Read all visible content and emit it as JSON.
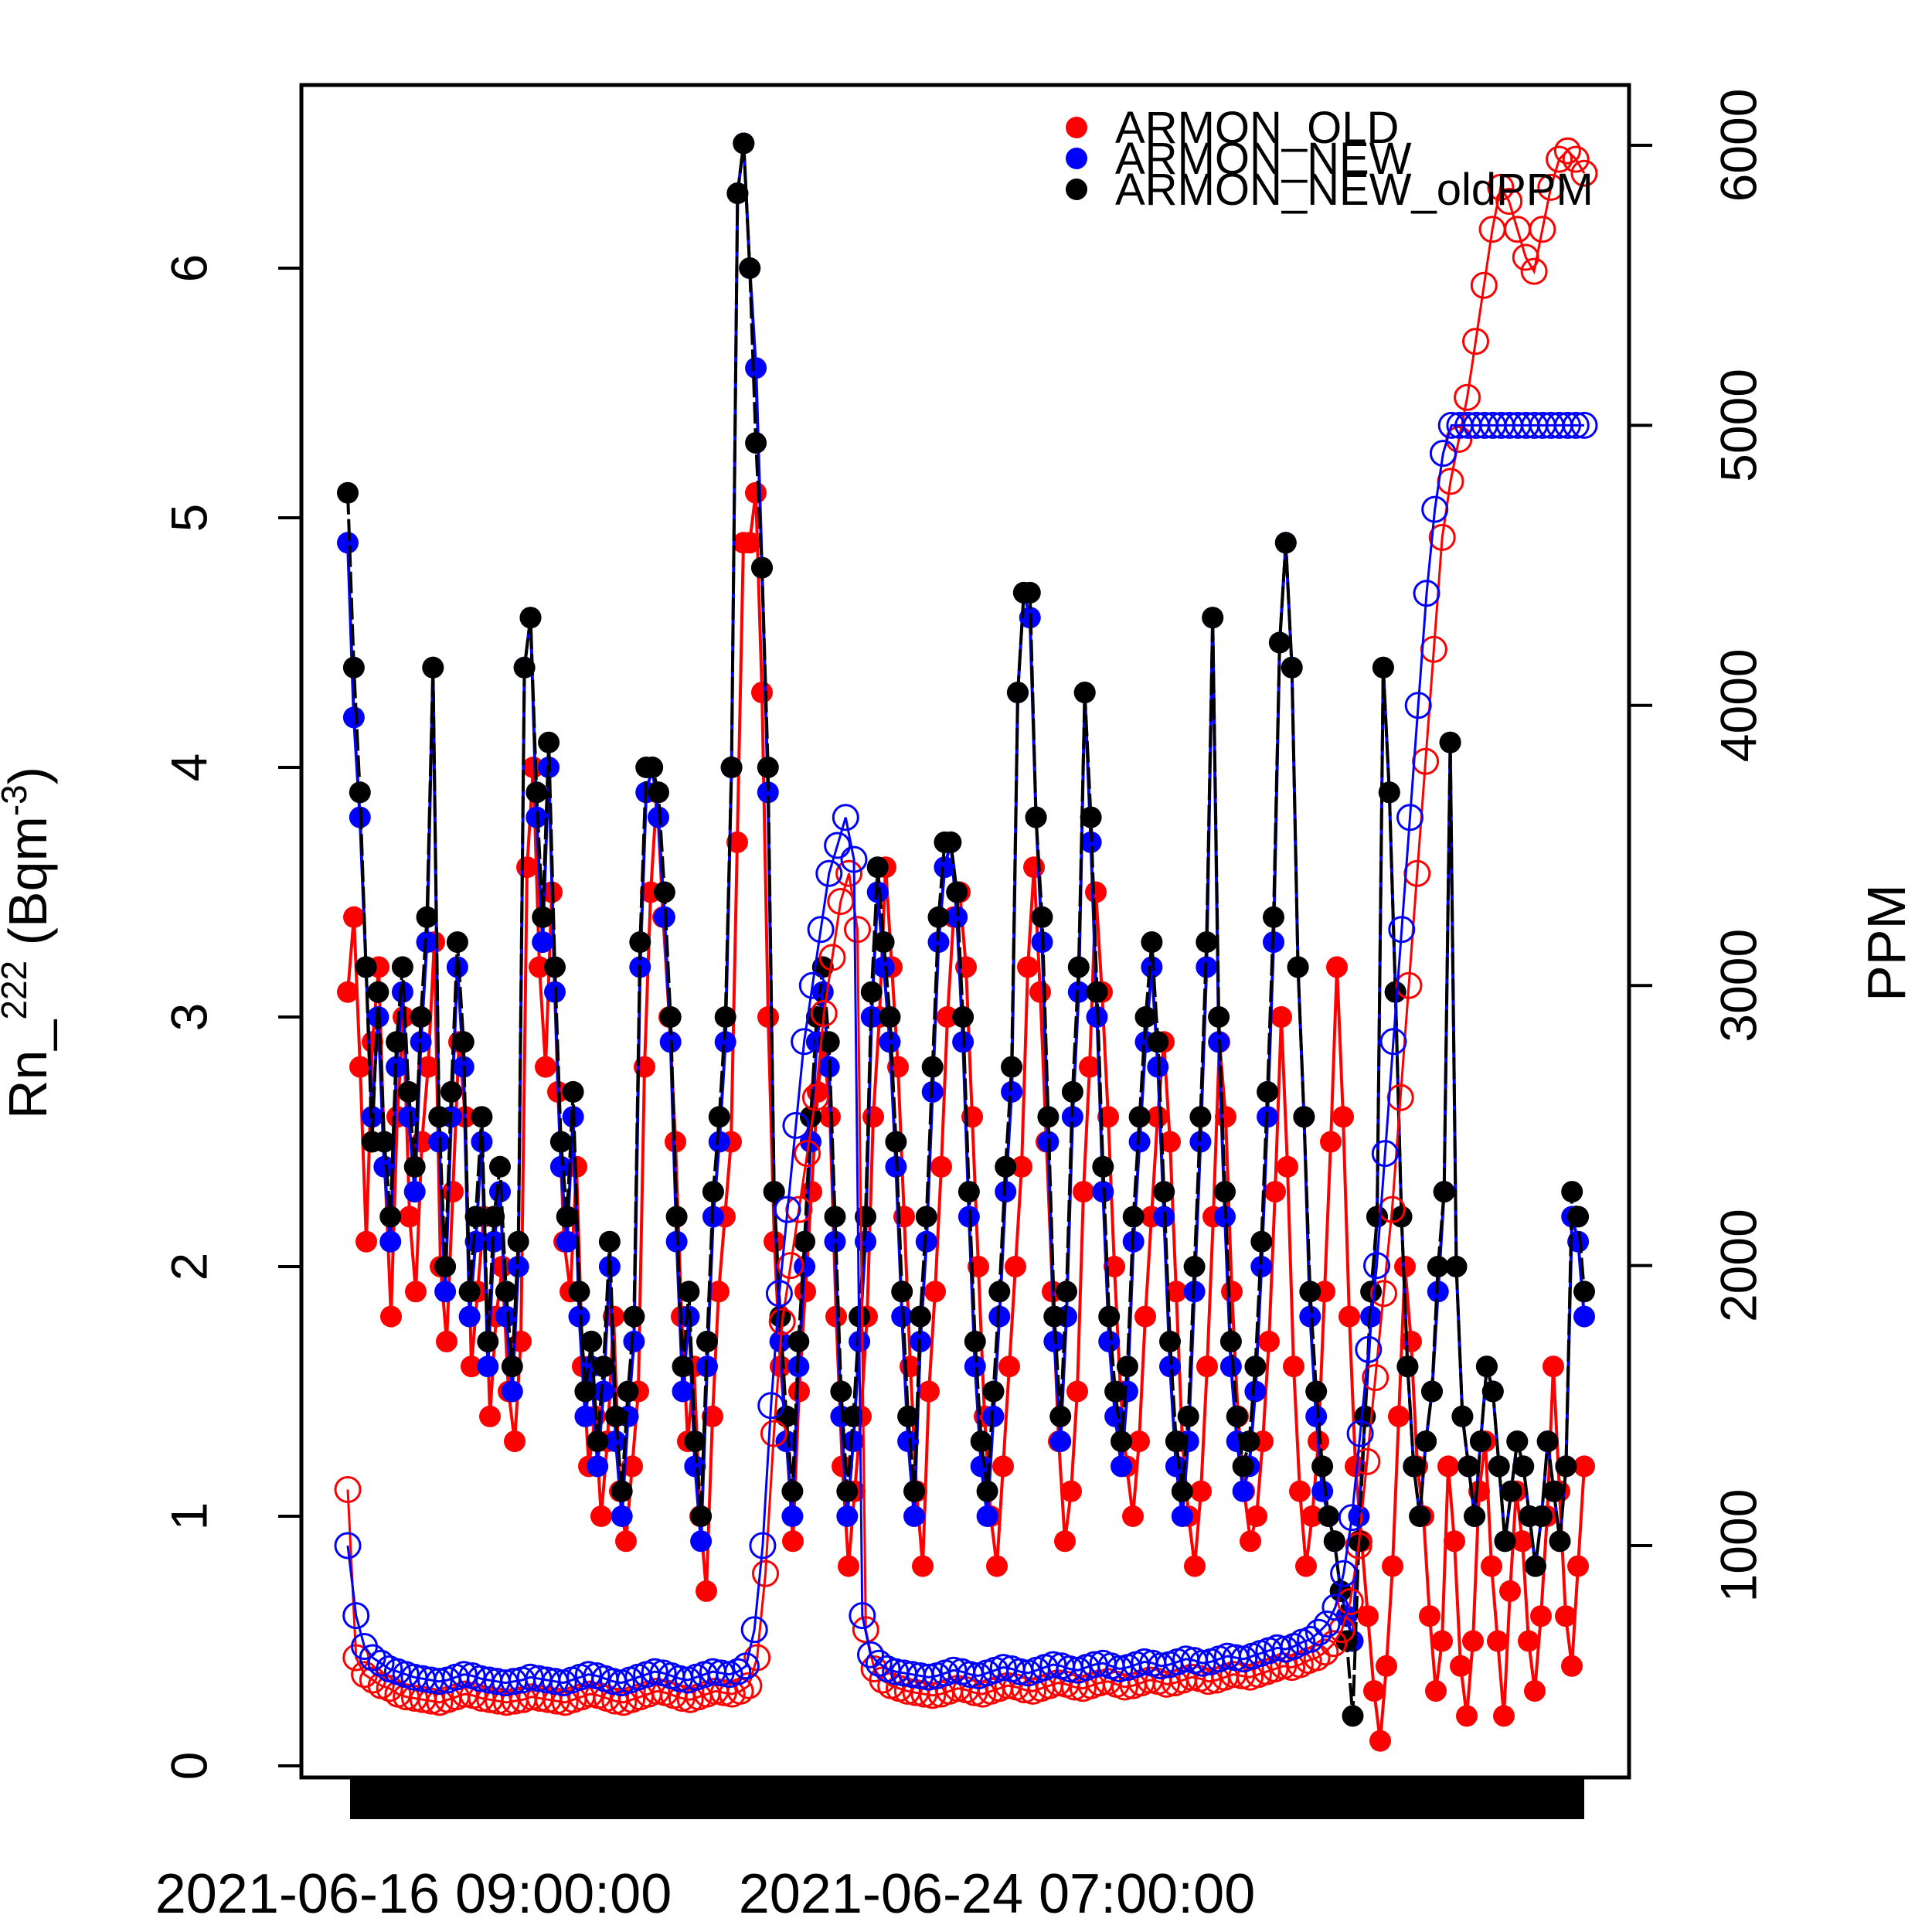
{
  "chart_data": {
    "type": "line",
    "y_left": {
      "label_prefix": "Rn_",
      "label_superscript_1": "222",
      "label_mid": " (Bqm",
      "label_superscript_2": "-3",
      "label_suffix": ")",
      "ticks": [
        "0",
        "1",
        "2",
        "3",
        "4",
        "5",
        "6"
      ],
      "ylim": [
        0,
        6.8
      ]
    },
    "y_right": {
      "label": "PPM",
      "ticks": [
        "1000",
        "2000",
        "3000",
        "4000",
        "5000",
        "6000"
      ],
      "ylim": [
        380,
        6420
      ]
    },
    "x": {
      "tick_labels": [
        "2021-06-16 09:00:00",
        "2021-06-24 07:00:00"
      ],
      "range_hours": [
        0,
        742
      ]
    },
    "legend": {
      "position": "top-right",
      "items": [
        {
          "label": "ARMON_OLD",
          "color": "#ff0000"
        },
        {
          "label": "ARMON_NEW",
          "color": "#0000ff"
        },
        {
          "label": "ARMON_NEW_oldPPM",
          "color": "#000000"
        }
      ]
    },
    "colors": {
      "old": "#ff0000",
      "new": "#0000ff",
      "new_oldppm": "#000000"
    },
    "series": [
      {
        "name": "ARMON_OLD",
        "axis": "left",
        "values": [
          3.1,
          3.4,
          2.8,
          2.1,
          2.9,
          3.2,
          2.4,
          1.8,
          2.6,
          3.0,
          2.2,
          1.9,
          2.5,
          2.8,
          3.3,
          2.0,
          1.7,
          2.3,
          2.9,
          2.6,
          1.6,
          1.9,
          2.2,
          1.4,
          1.8,
          2.0,
          1.5,
          1.3,
          1.7,
          3.6,
          4.0,
          3.2,
          2.8,
          3.5,
          2.7,
          2.1,
          1.9,
          2.4,
          1.6,
          1.2,
          1.4,
          1.0,
          1.3,
          1.8,
          1.1,
          0.9,
          1.2,
          1.5,
          2.8,
          3.5,
          3.9,
          3.4,
          3.0,
          2.5,
          1.8,
          1.3,
          1.6,
          1.0,
          0.7,
          1.4,
          1.9,
          2.2,
          2.5,
          3.7,
          4.9,
          4.9,
          5.1,
          4.3,
          3.0,
          2.1,
          1.6,
          1.3,
          0.9,
          1.5,
          1.9,
          2.3,
          2.7,
          2.9,
          2.6,
          1.8,
          1.2,
          0.8,
          1.1,
          1.4,
          1.8,
          2.6,
          3.0,
          3.6,
          3.2,
          2.8,
          2.2,
          1.6,
          1.1,
          0.8,
          1.5,
          1.9,
          2.4,
          3.0,
          3.4,
          3.5,
          3.2,
          2.6,
          2.0,
          1.4,
          1.0,
          0.8,
          1.2,
          1.6,
          2.0,
          2.4,
          3.2,
          3.6,
          3.1,
          2.5,
          1.9,
          1.3,
          0.9,
          1.1,
          1.5,
          2.3,
          2.8,
          3.5,
          3.1,
          2.6,
          2.0,
          1.5,
          1.2,
          1.0,
          1.3,
          1.8,
          2.2,
          2.6,
          2.9,
          2.5,
          1.9,
          1.3,
          1.0,
          0.8,
          1.1,
          1.6,
          2.2,
          2.9,
          2.6,
          1.9,
          1.4,
          1.1,
          0.9,
          1.0,
          1.3,
          1.7,
          2.3,
          3.0,
          2.4,
          1.6,
          1.1,
          0.8,
          1.0,
          1.3,
          1.9,
          2.5,
          3.2,
          2.6,
          1.8,
          1.2,
          0.9,
          0.6,
          0.3,
          0.1,
          0.4,
          0.8,
          1.4,
          2.0,
          1.7,
          1.2,
          1.0,
          0.6,
          0.3,
          0.5,
          1.2,
          0.9,
          0.4,
          0.2,
          0.5,
          1.1,
          1.3,
          0.8,
          0.5,
          0.2,
          0.7,
          1.1,
          0.9,
          0.5,
          0.3,
          0.6,
          1.0,
          1.6,
          1.1,
          0.6,
          0.4,
          0.8,
          1.2
        ]
      },
      {
        "name": "ARMON_NEW",
        "axis": "left",
        "values": [
          4.9,
          4.2,
          3.8,
          3.2,
          2.6,
          3.0,
          2.4,
          2.1,
          2.8,
          3.1,
          2.6,
          2.3,
          2.9,
          3.3,
          4.4,
          2.5,
          1.9,
          2.6,
          3.2,
          2.8,
          1.8,
          2.1,
          2.5,
          1.6,
          2.1,
          2.3,
          1.8,
          1.5,
          2.0,
          4.4,
          4.6,
          3.8,
          3.3,
          4.0,
          3.1,
          2.4,
          2.1,
          2.6,
          1.8,
          1.4,
          1.6,
          1.2,
          1.5,
          2.0,
          1.3,
          1.0,
          1.4,
          1.7,
          3.2,
          3.9,
          4.0,
          3.8,
          3.4,
          2.9,
          2.1,
          1.5,
          1.8,
          1.2,
          0.9,
          1.6,
          2.2,
          2.5,
          2.9,
          4.0,
          6.3,
          6.5,
          6.0,
          5.6,
          4.8,
          3.9,
          2.3,
          1.7,
          1.3,
          1.0,
          1.6,
          2.0,
          2.5,
          2.9,
          3.1,
          2.8,
          2.1,
          1.4,
          1.0,
          1.3,
          1.7,
          2.1,
          3.0,
          3.5,
          3.2,
          2.9,
          2.4,
          1.8,
          1.3,
          1.0,
          1.7,
          2.1,
          2.7,
          3.3,
          3.6,
          3.7,
          3.4,
          2.9,
          2.2,
          1.6,
          1.2,
          1.0,
          1.4,
          1.8,
          2.3,
          2.7,
          4.3,
          4.7,
          4.6,
          3.8,
          3.3,
          2.5,
          1.7,
          1.3,
          1.8,
          2.6,
          3.1,
          4.3,
          3.7,
          3.0,
          2.3,
          1.7,
          1.4,
          1.2,
          1.5,
          2.1,
          2.5,
          2.9,
          3.2,
          2.8,
          2.2,
          1.6,
          1.2,
          1.0,
          1.3,
          1.9,
          2.5,
          3.2,
          4.6,
          2.9,
          2.2,
          1.6,
          1.3,
          1.1,
          1.2,
          1.5,
          2.0,
          2.6,
          3.3,
          4.5,
          4.9,
          4.4,
          3.2,
          2.6,
          1.8,
          1.4,
          1.1,
          1.0,
          0.9,
          0.7,
          0.6,
          0.5,
          1.0,
          1.4,
          1.8,
          2.2,
          4.4,
          3.9,
          3.1,
          2.2,
          1.6,
          1.2,
          1.0,
          1.3,
          1.5,
          1.9,
          2.3,
          4.1,
          2.0,
          1.4,
          1.2,
          1.0,
          1.3,
          1.6,
          1.5,
          1.2,
          0.9,
          1.1,
          1.3,
          1.2,
          1.0,
          0.8,
          1.0,
          1.3,
          1.1,
          0.9,
          1.2,
          2.2,
          2.1,
          1.8
        ]
      },
      {
        "name": "ARMON_NEW_oldPPM",
        "axis": "left",
        "values": [
          5.1,
          4.4,
          3.9,
          3.2,
          2.5,
          3.1,
          2.5,
          2.2,
          2.9,
          3.2,
          2.7,
          2.4,
          3.0,
          3.4,
          4.4,
          2.6,
          2.0,
          2.7,
          3.3,
          2.9,
          1.9,
          2.2,
          2.6,
          1.7,
          2.2,
          2.4,
          1.9,
          1.6,
          2.1,
          4.4,
          4.6,
          3.9,
          3.4,
          4.1,
          3.2,
          2.5,
          2.2,
          2.7,
          1.9,
          1.5,
          1.7,
          1.3,
          1.6,
          2.1,
          1.4,
          1.1,
          1.5,
          1.8,
          3.3,
          4.0,
          4.0,
          3.9,
          3.5,
          3.0,
          2.2,
          1.6,
          1.9,
          1.3,
          1.0,
          1.7,
          2.3,
          2.6,
          3.0,
          4.0,
          6.3,
          6.5,
          6.0,
          5.3,
          4.8,
          4.0,
          2.3,
          1.8,
          1.4,
          1.1,
          1.7,
          2.1,
          2.6,
          3.0,
          3.2,
          2.9,
          2.2,
          1.5,
          1.1,
          1.4,
          1.8,
          2.2,
          3.1,
          3.6,
          3.3,
          3.0,
          2.5,
          1.9,
          1.4,
          1.1,
          1.8,
          2.2,
          2.8,
          3.4,
          3.7,
          3.7,
          3.5,
          3.0,
          2.3,
          1.7,
          1.3,
          1.1,
          1.5,
          1.9,
          2.4,
          2.8,
          4.3,
          4.7,
          4.7,
          3.8,
          3.4,
          2.6,
          1.8,
          1.4,
          1.9,
          2.7,
          3.2,
          4.3,
          3.8,
          3.1,
          2.4,
          1.8,
          1.5,
          1.3,
          1.6,
          2.2,
          2.6,
          3.0,
          3.3,
          2.9,
          2.3,
          1.7,
          1.3,
          1.1,
          1.4,
          2.0,
          2.6,
          3.3,
          4.6,
          3.0,
          2.3,
          1.7,
          1.4,
          1.2,
          1.3,
          1.6,
          2.1,
          2.7,
          3.4,
          4.5,
          4.9,
          4.4,
          3.2,
          2.6,
          1.9,
          1.5,
          1.2,
          1.0,
          0.9,
          0.7,
          0.5,
          0.2,
          0.9,
          1.4,
          1.9,
          2.2,
          4.4,
          3.9,
          3.1,
          2.2,
          1.6,
          1.2,
          1.0,
          1.3,
          1.5,
          2.0,
          2.3,
          4.1,
          2.0,
          1.4,
          1.2,
          1.0,
          1.3,
          1.6,
          1.5,
          1.2,
          0.9,
          1.1,
          1.3,
          1.2,
          1.0,
          0.8,
          1.0,
          1.3,
          1.1,
          0.9,
          1.2,
          2.3,
          2.2,
          1.9
        ]
      },
      {
        "name": "ARMON_OLD PPM",
        "axis": "right",
        "values": [
          1200,
          600,
          540,
          520,
          500,
          490,
          470,
          460,
          455,
          450,
          445,
          440,
          450,
          460,
          470,
          465,
          455,
          450,
          445,
          440,
          445,
          450,
          460,
          455,
          450,
          445,
          440,
          450,
          460,
          470,
          465,
          455,
          445,
          440,
          450,
          460,
          470,
          480,
          475,
          465,
          455,
          450,
          460,
          470,
          480,
          475,
          470,
          480,
          500,
          600,
          900,
          1400,
          1800,
          2000,
          2200,
          2400,
          2600,
          2900,
          3100,
          3300,
          3400,
          3200,
          700,
          560,
          520,
          500,
          490,
          480,
          475,
          470,
          465,
          470,
          480,
          490,
          485,
          475,
          470,
          480,
          490,
          500,
          495,
          485,
          480,
          490,
          500,
          510,
          505,
          495,
          490,
          500,
          510,
          515,
          505,
          495,
          500,
          510,
          520,
          515,
          505,
          510,
          520,
          530,
          525,
          515,
          520,
          530,
          540,
          535,
          530,
          540,
          550,
          560,
          570,
          565,
          575,
          590,
          600,
          620,
          650,
          700,
          800,
          1000,
          1300,
          1600,
          1900,
          2200,
          2600,
          3000,
          3400,
          3800,
          4200,
          4600,
          4800,
          4950,
          5100,
          5300,
          5500,
          5700,
          5850,
          5800,
          5700,
          5600,
          5550,
          5700,
          5850,
          5950,
          5980,
          5950,
          5900
        ]
      },
      {
        "name": "ARMON_NEW PPM",
        "axis": "right",
        "values": [
          1000,
          750,
          640,
          600,
          580,
          560,
          550,
          540,
          530,
          525,
          520,
          515,
          520,
          530,
          540,
          535,
          525,
          520,
          515,
          510,
          515,
          520,
          530,
          525,
          520,
          515,
          510,
          520,
          530,
          540,
          535,
          525,
          515,
          510,
          520,
          530,
          540,
          550,
          545,
          535,
          525,
          520,
          530,
          540,
          550,
          545,
          540,
          550,
          570,
          700,
          1000,
          1500,
          1900,
          2200,
          2500,
          2800,
          3000,
          3200,
          3400,
          3500,
          3600,
          3450,
          750,
          610,
          580,
          560,
          550,
          545,
          540,
          535,
          530,
          535,
          545,
          555,
          550,
          540,
          535,
          545,
          555,
          565,
          560,
          550,
          545,
          555,
          565,
          575,
          570,
          560,
          555,
          565,
          575,
          580,
          570,
          560,
          565,
          575,
          585,
          580,
          570,
          575,
          585,
          595,
          590,
          580,
          585,
          595,
          605,
          600,
          595,
          605,
          615,
          625,
          635,
          630,
          640,
          655,
          665,
          690,
          720,
          780,
          900,
          1100,
          1400,
          1700,
          2000,
          2400,
          2800,
          3200,
          3600,
          4000,
          4400,
          4700,
          4900,
          5000,
          5000,
          5000,
          5000,
          5000,
          5000,
          5000,
          5000,
          5000,
          5000,
          5000,
          5000,
          5000,
          5000,
          5000,
          5000,
          5000
        ]
      }
    ]
  }
}
